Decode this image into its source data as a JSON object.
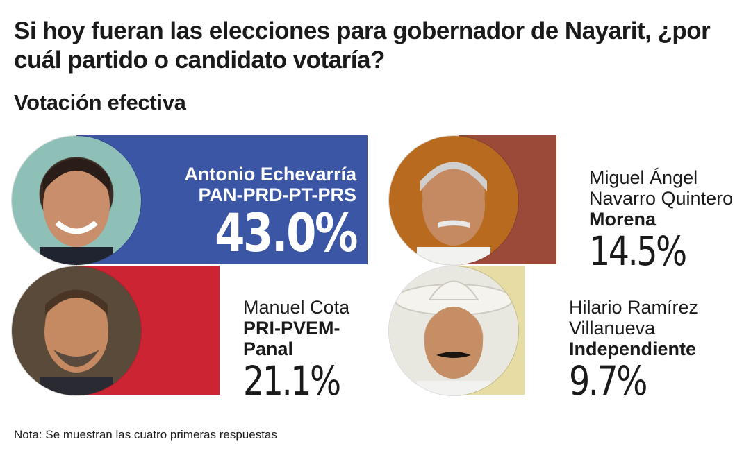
{
  "title": "Si hoy fueran las elecciones para gobernador de Nayarit, ¿por cuál partido o candidato votaría?",
  "subtitle": "Votación efectiva",
  "note": "Nota: Se muestran las cuatro primeras respuestas",
  "chart_data": {
    "type": "bar",
    "title": "Si hoy fueran las elecciones para gobernador de Nayarit, ¿por cuál partido o candidato votaría?",
    "subtitle": "Votación efectiva",
    "unit": "%",
    "candidates": [
      {
        "name": "Antonio Echevarría",
        "party": "PAN-PRD-PT-PRS",
        "value": 43.0,
        "label": "43.0%",
        "color": "#3c56a6"
      },
      {
        "name": "Miguel Ángel Navarro Quintero",
        "party": "Morena",
        "value": 14.5,
        "label": "14.5%",
        "color": "#9b4a3a"
      },
      {
        "name": "Manuel Cota",
        "party": "PRI-PVEM-Panal",
        "value": 21.1,
        "label": "21.1%",
        "color": "#cc2433"
      },
      {
        "name": "Hilario Ramírez Villanueva",
        "party": "Independiente",
        "value": 9.7,
        "label": "9.7%",
        "color": "#e6dca4"
      }
    ]
  }
}
